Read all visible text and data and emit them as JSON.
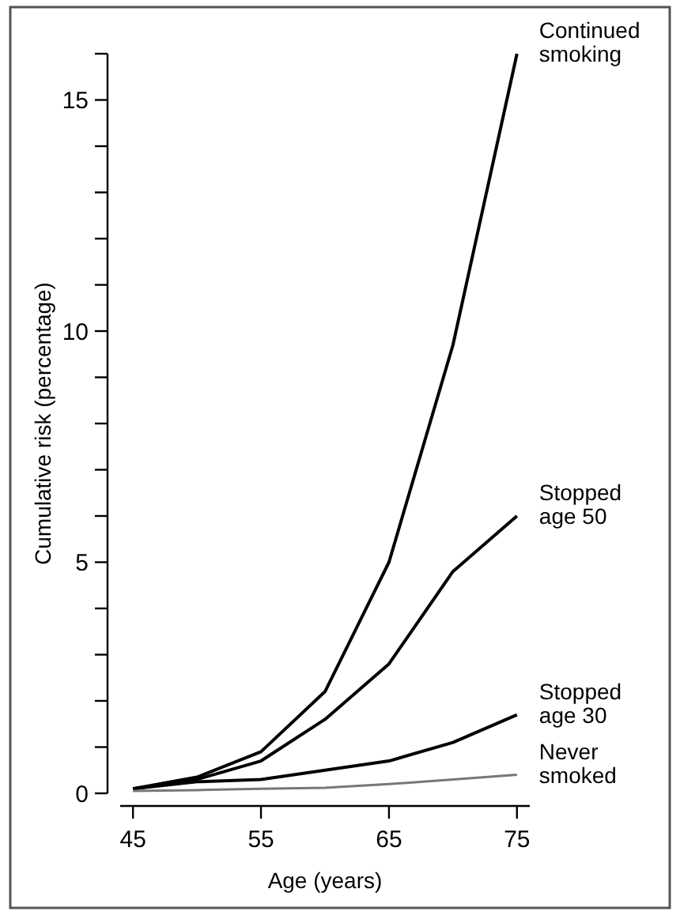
{
  "chart_data": {
    "type": "line",
    "xlabel": "Age (years)",
    "ylabel": "Cumulative risk (percentage)",
    "x": [
      45,
      50,
      55,
      60,
      65,
      70,
      75
    ],
    "xlim": [
      44,
      76
    ],
    "xticks": [
      45,
      55,
      65,
      75
    ],
    "ylim": [
      0,
      16
    ],
    "yticks": [
      0,
      {
        "value": 1,
        "label": null
      },
      {
        "value": 2,
        "label": null
      },
      {
        "value": 3,
        "label": null
      },
      {
        "value": 4,
        "label": null
      },
      5,
      {
        "value": 6,
        "label": null
      },
      {
        "value": 7,
        "label": null
      },
      {
        "value": 8,
        "label": null
      },
      {
        "value": 9,
        "label": null
      },
      10,
      {
        "value": 11,
        "label": null
      },
      {
        "value": 12,
        "label": null
      },
      {
        "value": 13,
        "label": null
      },
      {
        "value": 14,
        "label": null
      },
      15,
      {
        "value": 16,
        "label": null
      }
    ],
    "legend": false,
    "marker": "none",
    "line_style": "solid",
    "series": [
      {
        "name": "Continued smoking",
        "color": "#000000",
        "values": [
          0.1,
          0.35,
          0.9,
          2.2,
          5.0,
          9.7,
          16
        ]
      },
      {
        "name": "Stopped age 50",
        "color": "#000000",
        "values": [
          0.1,
          0.3,
          0.7,
          1.6,
          2.8,
          4.8,
          6.0
        ]
      },
      {
        "name": "Stopped age 30",
        "color": "#000000",
        "values": [
          0.1,
          0.25,
          0.3,
          0.5,
          0.7,
          1.1,
          1.7
        ]
      },
      {
        "name": "Never smoked",
        "color": "#777777",
        "values": [
          0.05,
          0.07,
          0.1,
          0.12,
          0.2,
          0.3,
          0.4
        ]
      }
    ]
  }
}
